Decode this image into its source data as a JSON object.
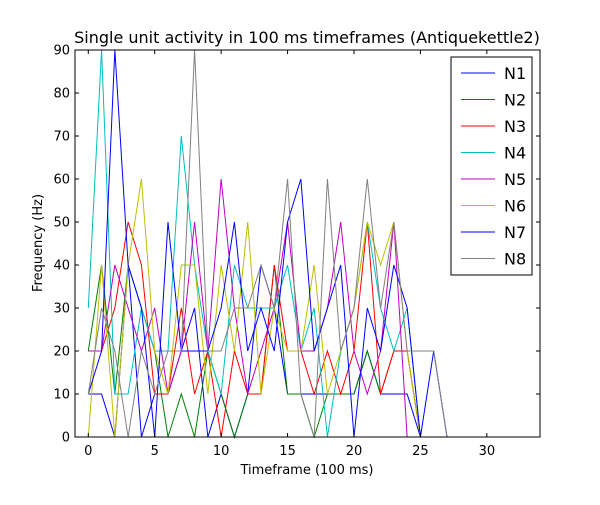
{
  "chart_data": {
    "type": "line",
    "title": "Single unit activity in 100 ms timeframes (Antiquekettle2)",
    "xlabel": "Timeframe (100 ms)",
    "ylabel": "Frequency (Hz)",
    "xlim": [
      -1,
      34
    ],
    "ylim": [
      0,
      90
    ],
    "xticks": [
      0,
      5,
      10,
      15,
      20,
      25,
      30
    ],
    "yticks": [
      0,
      10,
      20,
      30,
      40,
      50,
      60,
      70,
      80,
      90
    ],
    "grid": false,
    "legend_position": "top-right",
    "x": [
      0,
      1,
      2,
      3,
      4,
      5,
      6,
      7,
      8,
      9,
      10,
      11,
      12,
      13,
      14,
      15,
      16,
      17,
      18,
      19,
      20,
      21,
      22,
      23,
      24,
      25,
      26,
      27,
      28,
      29,
      30,
      31,
      32,
      33
    ],
    "series": [
      {
        "name": "N1",
        "color": "#0000ff",
        "values": [
          10,
          10,
          0,
          40,
          0,
          10,
          10,
          20,
          30,
          0,
          10,
          0,
          10,
          40,
          30,
          10,
          10,
          10,
          10,
          10,
          10,
          20,
          10,
          10,
          10,
          0,
          0,
          0,
          0,
          0,
          0,
          0,
          0,
          0
        ]
      },
      {
        "name": "N2",
        "color": "#008000",
        "values": [
          20,
          40,
          10,
          40,
          30,
          20,
          0,
          10,
          0,
          20,
          10,
          0,
          10,
          10,
          40,
          10,
          10,
          0,
          10,
          10,
          10,
          20,
          10,
          20,
          20,
          0,
          0,
          0,
          0,
          0,
          0,
          0,
          0,
          0
        ]
      },
      {
        "name": "N3",
        "color": "#ff0000",
        "values": [
          20,
          20,
          30,
          50,
          40,
          10,
          10,
          30,
          10,
          20,
          0,
          20,
          10,
          10,
          40,
          20,
          20,
          10,
          20,
          10,
          20,
          50,
          10,
          20,
          20,
          0,
          0,
          0,
          0,
          0,
          0,
          0,
          0,
          0
        ]
      },
      {
        "name": "N4",
        "color": "#00bfbf",
        "values": [
          30,
          90,
          10,
          10,
          30,
          20,
          20,
          70,
          40,
          20,
          10,
          40,
          30,
          30,
          30,
          40,
          20,
          30,
          0,
          20,
          30,
          50,
          30,
          20,
          30,
          0,
          0,
          0,
          0,
          0,
          0,
          0,
          0,
          0
        ]
      },
      {
        "name": "N5",
        "color": "#bf00bf",
        "values": [
          20,
          20,
          40,
          30,
          20,
          30,
          10,
          20,
          50,
          20,
          60,
          30,
          10,
          20,
          30,
          50,
          20,
          20,
          30,
          50,
          20,
          10,
          20,
          50,
          0,
          0,
          0,
          0,
          0,
          0,
          0,
          0,
          0,
          0
        ]
      },
      {
        "name": "N6",
        "color": "#bfbf00",
        "values": [
          0,
          40,
          0,
          40,
          60,
          20,
          10,
          40,
          40,
          10,
          40,
          20,
          50,
          10,
          30,
          20,
          20,
          40,
          10,
          20,
          30,
          50,
          40,
          50,
          20,
          0,
          0,
          0,
          0,
          0,
          0,
          0,
          0,
          0
        ]
      },
      {
        "name": "N7",
        "color": "#0000ff",
        "values": [
          10,
          20,
          90,
          40,
          30,
          0,
          50,
          20,
          20,
          20,
          30,
          50,
          20,
          30,
          20,
          50,
          60,
          20,
          30,
          40,
          0,
          30,
          20,
          40,
          30,
          0,
          20,
          0,
          0,
          0,
          0,
          0,
          0,
          0
        ]
      },
      {
        "name": "N8",
        "color": "#808080",
        "values": [
          10,
          30,
          20,
          0,
          20,
          10,
          20,
          20,
          90,
          20,
          20,
          30,
          30,
          40,
          30,
          60,
          10,
          0,
          60,
          20,
          30,
          60,
          30,
          50,
          20,
          20,
          20,
          0,
          0,
          0,
          0,
          0,
          0,
          0
        ]
      }
    ]
  }
}
